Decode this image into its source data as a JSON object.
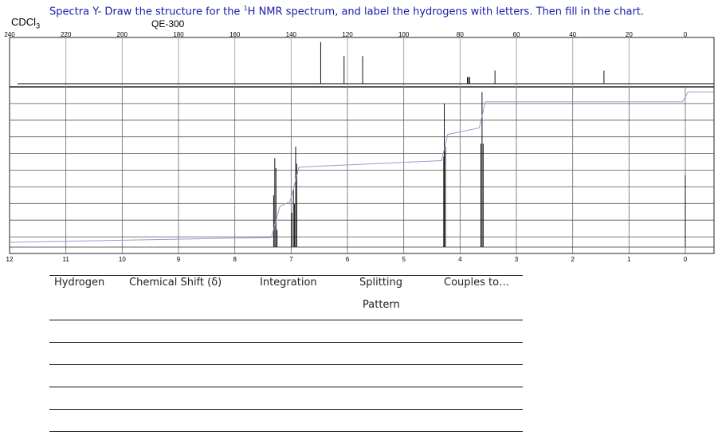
{
  "header": {
    "title_before": "Spectra Y- Draw the structure for the ",
    "title_sup": "1",
    "title_after": "H NMR spectrum, and label the hydrogens with letters. Then fill in the chart.",
    "solvent": "CDCl",
    "solvent_sub": "3",
    "instrument": "QE-300"
  },
  "chart_data": [
    {
      "type": "line",
      "description_role": "13C spectrum (top panel)",
      "x_ticks": [
        "240",
        "220",
        "200",
        "180",
        "160",
        "140",
        "120",
        "100",
        "80",
        "60",
        "40",
        "20",
        "0"
      ],
      "xlim": [
        240,
        0
      ],
      "grid": true,
      "peaks": [
        {
          "ppm": 129.5,
          "height": 0.95
        },
        {
          "ppm": 121.2,
          "height": 0.63
        },
        {
          "ppm": 114.6,
          "height": 0.63
        },
        {
          "ppm": 77.4,
          "height": 0.15
        },
        {
          "ppm": 77.0,
          "height": 0.15
        },
        {
          "ppm": 76.6,
          "height": 0.15
        },
        {
          "ppm": 67.6,
          "height": 0.3
        },
        {
          "ppm": 28.9,
          "height": 0.3
        }
      ]
    },
    {
      "type": "line",
      "description_role": "1H spectrum (bottom panel)",
      "x_ticks": [
        "12",
        "11",
        "10",
        "9",
        "8",
        "7",
        "6",
        "5",
        "4",
        "3",
        "2",
        "1",
        "0"
      ],
      "xlim": [
        12,
        0
      ],
      "grid": true,
      "peaks": [
        {
          "ppm": 7.31,
          "height": 0.36
        },
        {
          "ppm": 7.29,
          "height": 0.62
        },
        {
          "ppm": 7.27,
          "height": 0.55
        },
        {
          "ppm": 7.25,
          "height": 0.12
        },
        {
          "ppm": 6.99,
          "height": 0.24
        },
        {
          "ppm": 6.96,
          "height": 0.4
        },
        {
          "ppm": 6.94,
          "height": 0.3
        },
        {
          "ppm": 6.92,
          "height": 0.7
        },
        {
          "ppm": 6.9,
          "height": 0.58
        },
        {
          "ppm": 4.29,
          "height": 0.63
        },
        {
          "ppm": 4.28,
          "height": 1.0
        },
        {
          "ppm": 4.26,
          "height": 0.7
        },
        {
          "ppm": 3.63,
          "height": 0.72
        },
        {
          "ppm": 3.61,
          "height": 1.08
        },
        {
          "ppm": 3.59,
          "height": 0.72
        },
        {
          "ppm": 0.0,
          "height": 0.5
        }
      ],
      "integration": [
        {
          "ppm": 12,
          "level": 0.0
        },
        {
          "ppm": 7.35,
          "level": 0.03
        },
        {
          "ppm": 7.2,
          "level": 0.22
        },
        {
          "ppm": 7.02,
          "level": 0.25
        },
        {
          "ppm": 6.86,
          "level": 0.46
        },
        {
          "ppm": 4.33,
          "level": 0.5
        },
        {
          "ppm": 4.22,
          "level": 0.66
        },
        {
          "ppm": 3.66,
          "level": 0.7
        },
        {
          "ppm": 3.55,
          "level": 0.86
        },
        {
          "ppm": 0.05,
          "level": 0.86
        },
        {
          "ppm": -0.05,
          "level": 0.92
        },
        {
          "ppm": -0.5,
          "level": 0.92
        }
      ]
    }
  ],
  "table": {
    "headers": [
      "Hydrogen",
      "Chemical Shift (δ)",
      "Integration",
      "Splitting",
      "Couples to…"
    ],
    "header_line2": "Pattern",
    "rows": 6
  }
}
